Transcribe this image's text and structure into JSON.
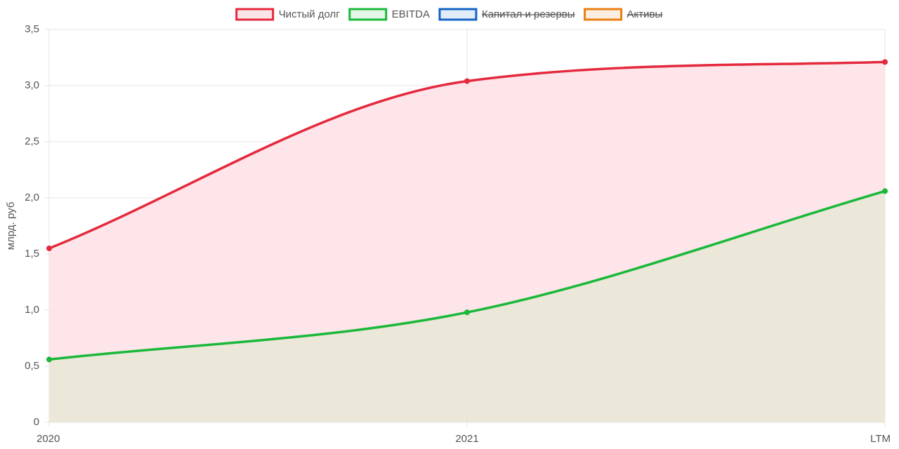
{
  "chart_data": {
    "type": "area",
    "y_label": "млрд. руб",
    "categories": [
      "2020",
      "2021",
      "LTM"
    ],
    "series": [
      {
        "name": "Чистый долг",
        "color": "#e4293d",
        "fill_color": "rgba(253,225,229,0.85)",
        "values": [
          1.55,
          3.04,
          3.21
        ]
      },
      {
        "name": "EBITDA",
        "color": "#1ab83a",
        "fill_color": "rgba(232,232,214,0.85)",
        "values": [
          0.56,
          0.98,
          2.06
        ]
      }
    ],
    "hidden_series": [
      {
        "name": "Капитал и резервы",
        "color": "#1463c4"
      },
      {
        "name": "Активы",
        "color": "#ea7e12"
      }
    ],
    "ylim": [
      0,
      3.5
    ],
    "yticks": [
      0,
      {
        "value": 0.5,
        "label": "0,5"
      },
      {
        "value": 1,
        "label": "1,0"
      },
      {
        "value": 1.5,
        "label": "1,5"
      },
      {
        "value": 2,
        "label": "2,0"
      },
      {
        "value": 2.5,
        "label": "2,5"
      },
      {
        "value": 3,
        "label": "3,0"
      },
      {
        "value": 3.5,
        "label": "3,5"
      }
    ],
    "grid": true,
    "legend": "top"
  }
}
